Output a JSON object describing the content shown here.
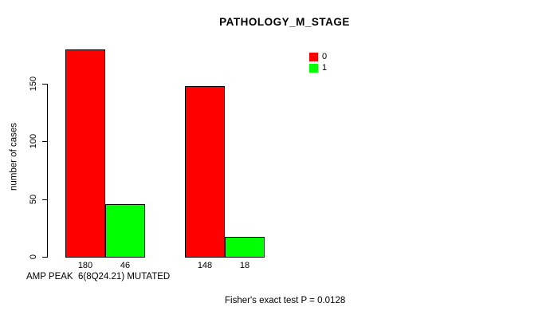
{
  "chart_data": {
    "type": "bar",
    "title": "PATHOLOGY_M_STAGE",
    "ylabel": "number of cases",
    "xlabel": "AMP PEAK  6(8Q24.21) MUTATED",
    "annotation": "Fisher's exact test P = 0.0128",
    "series": [
      {
        "name": "0",
        "color": "#FF0000",
        "values": [
          180,
          148
        ]
      },
      {
        "name": "1",
        "color": "#00FF00",
        "values": [
          46,
          18
        ]
      }
    ],
    "yticks": [
      0,
      50,
      100,
      150
    ],
    "ylim": [
      0,
      185
    ],
    "grid": false,
    "legend_position": "top-right",
    "bar_value_labels_shown": true
  }
}
